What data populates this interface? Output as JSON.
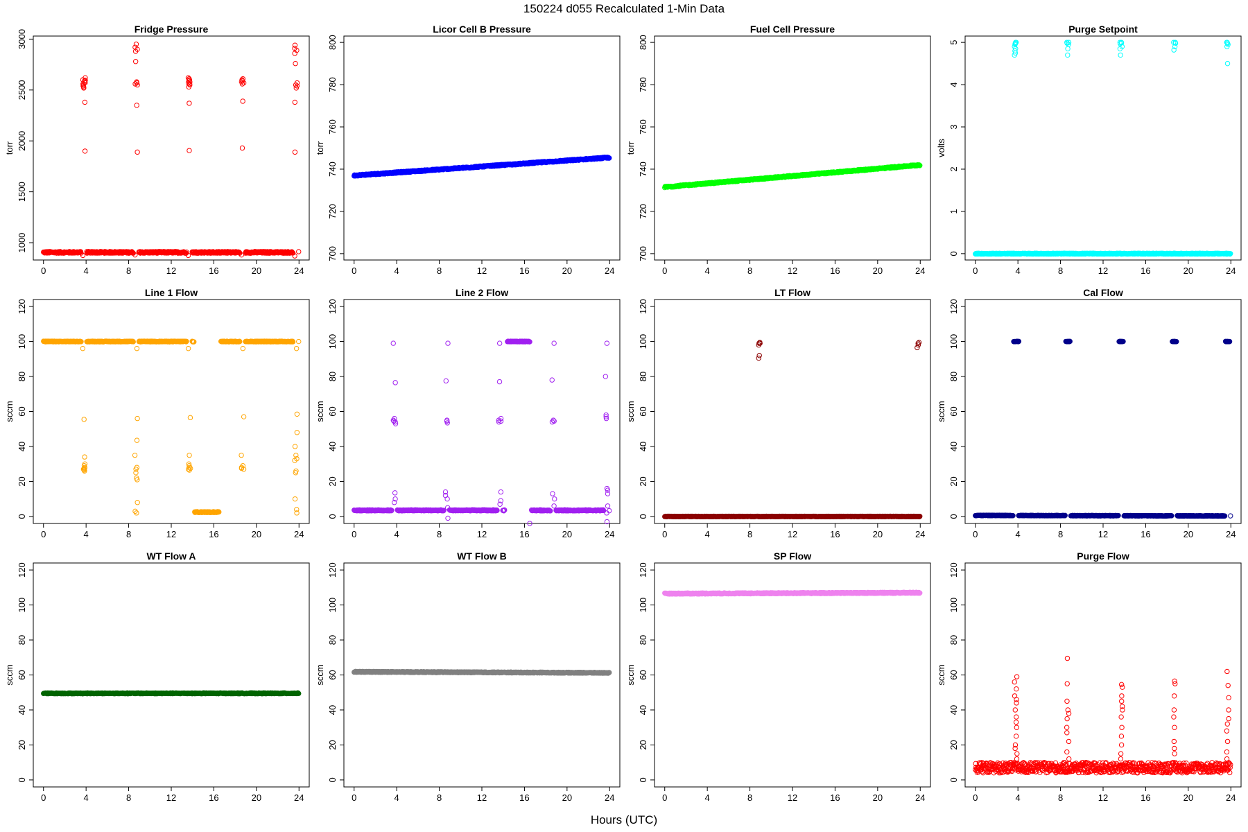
{
  "header": {
    "title": "150224   d055   Recalculated 1-Min Data",
    "xlabel": "Hours (UTC)"
  },
  "chart_data": [
    {
      "type": "scatter",
      "title": "Fridge Pressure",
      "ylabel": "torr",
      "color": "#ff0000",
      "xlim": [
        0,
        24
      ],
      "xticks": [
        0,
        4,
        8,
        12,
        16,
        20,
        24
      ],
      "ylim": [
        830,
        3030
      ],
      "yticks": [
        1000,
        1500,
        2000,
        2500,
        3000
      ],
      "baseline": {
        "y_start": 905,
        "y_end": 905,
        "noise": 8,
        "breaks": [
          3.8,
          8.7,
          13.7,
          18.7,
          23.7
        ]
      },
      "clusters": [
        {
          "x": 3.8,
          "y": [
            1900,
            2380,
            2520,
            2540,
            2560,
            2570,
            2580,
            2590,
            2600,
            2620,
            2530,
            2550,
            2595
          ]
        },
        {
          "x": 8.7,
          "y": [
            1890,
            2350,
            2550,
            2570,
            2580,
            2780,
            2880,
            2900,
            2920,
            2950,
            2560
          ]
        },
        {
          "x": 13.7,
          "y": [
            1905,
            2370,
            2530,
            2550,
            2570,
            2580,
            2590,
            2600,
            2610,
            2620,
            2560
          ]
        },
        {
          "x": 18.7,
          "y": [
            1930,
            2390,
            2560,
            2580,
            2590,
            2600,
            2610,
            2570
          ]
        },
        {
          "x": 23.7,
          "y": [
            1890,
            2380,
            2520,
            2550,
            2570,
            2760,
            2860,
            2890,
            2910,
            2940,
            2540
          ]
        }
      ],
      "dips": [
        {
          "x": 3.7,
          "y": 875
        },
        {
          "x": 8.6,
          "y": 880
        },
        {
          "x": 13.6,
          "y": 875
        },
        {
          "x": 18.6,
          "y": 880
        },
        {
          "x": 23.6,
          "y": 870
        }
      ]
    },
    {
      "type": "scatter",
      "title": "Licor Cell B Pressure",
      "ylabel": "torr",
      "color": "#0000ff",
      "xlim": [
        0,
        24
      ],
      "xticks": [
        0,
        4,
        8,
        12,
        16,
        20,
        24
      ],
      "ylim": [
        697,
        803
      ],
      "yticks": [
        700,
        720,
        740,
        760,
        780,
        800
      ],
      "baseline": {
        "y_start": 737,
        "y_end": 745.5,
        "noise": 0.3,
        "breaks": []
      },
      "clusters": [],
      "dips": []
    },
    {
      "type": "scatter",
      "title": "Fuel Cell Pressure",
      "ylabel": "torr",
      "color": "#00ff00",
      "xlim": [
        0,
        24
      ],
      "xticks": [
        0,
        4,
        8,
        12,
        16,
        20,
        24
      ],
      "ylim": [
        697,
        803
      ],
      "yticks": [
        700,
        720,
        740,
        760,
        780,
        800
      ],
      "baseline": {
        "y_start": 731.5,
        "y_end": 742,
        "noise": 0.3,
        "breaks": []
      },
      "clusters": [],
      "dips": []
    },
    {
      "type": "scatter",
      "title": "Purge Setpoint",
      "ylabel": "volts",
      "color": "#00ffff",
      "xlim": [
        0,
        24
      ],
      "xticks": [
        0,
        4,
        8,
        12,
        16,
        20,
        24
      ],
      "ylim": [
        -0.15,
        5.15
      ],
      "yticks": [
        0,
        1,
        2,
        3,
        4,
        5
      ],
      "baseline": {
        "y_start": 0,
        "y_end": 0,
        "noise": 0.01,
        "breaks": []
      },
      "clusters": [
        {
          "x": 3.8,
          "y": [
            5,
            4.98,
            4.95,
            4.9,
            4.85,
            4.8,
            4.75,
            4.7,
            5,
            4.97
          ]
        },
        {
          "x": 8.7,
          "y": [
            5,
            4.98,
            4.95,
            4.85,
            4.7,
            5
          ]
        },
        {
          "x": 13.7,
          "y": [
            5,
            4.99,
            4.97,
            4.9,
            4.85,
            4.7,
            5
          ]
        },
        {
          "x": 18.7,
          "y": [
            5,
            4.98,
            4.9,
            4.82,
            5
          ]
        },
        {
          "x": 23.7,
          "y": [
            5,
            4.98,
            4.95,
            4.9,
            4.5,
            5
          ]
        }
      ],
      "dips": []
    },
    {
      "type": "scatter",
      "title": "Line 1 Flow",
      "ylabel": "sccm",
      "color": "#ffa500",
      "xlim": [
        0,
        24
      ],
      "xticks": [
        0,
        4,
        8,
        12,
        16,
        20,
        24
      ],
      "ylim": [
        -4,
        124
      ],
      "yticks": [
        0,
        20,
        40,
        60,
        80,
        100,
        120
      ],
      "baseline": {
        "y_start": 100,
        "y_end": 100,
        "noise": 0.2,
        "breaks": [
          3.8,
          8.7,
          13.7,
          14.4,
          16.4,
          18.7,
          23.7
        ],
        "gaps": [
          [
            14.4,
            16.4
          ]
        ]
      },
      "segments": [
        {
          "x0": 14.2,
          "x1": 16.5,
          "y": 2.5,
          "noise": 0.3
        }
      ],
      "clusters": [
        {
          "x": 3.8,
          "y": [
            26,
            27,
            28,
            26.5,
            27.5,
            29,
            30,
            34,
            55.5,
            96,
            27
          ]
        },
        {
          "x": 8.7,
          "y": [
            22,
            21,
            25,
            28,
            35,
            43.5,
            56,
            8,
            3,
            2,
            96,
            27
          ]
        },
        {
          "x": 13.7,
          "y": [
            27,
            28,
            26.5,
            29,
            30,
            35,
            56.5,
            96,
            27.5
          ]
        },
        {
          "x": 18.7,
          "y": [
            27,
            28,
            29,
            35,
            57,
            96,
            27.5
          ]
        },
        {
          "x": 23.7,
          "y": [
            25,
            26,
            32,
            33,
            35,
            40,
            48,
            58.5,
            10,
            4,
            2,
            96
          ]
        }
      ],
      "dips": []
    },
    {
      "type": "scatter",
      "title": "Line 2 Flow",
      "ylabel": "sccm",
      "color": "#a020f0",
      "xlim": [
        0,
        24
      ],
      "xticks": [
        0,
        4,
        8,
        12,
        16,
        20,
        24
      ],
      "ylim": [
        -4,
        124
      ],
      "yticks": [
        0,
        20,
        40,
        60,
        80,
        100,
        120
      ],
      "baseline": {
        "y_start": 3.5,
        "y_end": 3.5,
        "noise": 0.3,
        "breaks": [
          3.8,
          8.7,
          13.7,
          14.4,
          16.4,
          18.7,
          23.7
        ],
        "gaps": [
          [
            14.4,
            16.4
          ]
        ]
      },
      "segments": [
        {
          "x0": 14.4,
          "x1": 16.5,
          "y": 100,
          "noise": 0.2
        }
      ],
      "clusters": [
        {
          "x": 3.8,
          "y": [
            53,
            54,
            55,
            56,
            54.5,
            76.5,
            99,
            10,
            13.5,
            8
          ]
        },
        {
          "x": 8.7,
          "y": [
            53.5,
            54.5,
            55,
            77.5,
            99,
            14,
            12,
            10,
            5,
            -1
          ]
        },
        {
          "x": 13.7,
          "y": [
            54,
            55,
            56,
            54.5,
            77,
            99,
            14,
            9,
            7
          ]
        },
        {
          "x": 18.7,
          "y": [
            54,
            55,
            54.5,
            78,
            99,
            13,
            10,
            6
          ]
        },
        {
          "x": 23.7,
          "y": [
            56,
            57,
            58,
            80,
            99,
            15,
            16,
            13,
            6,
            2,
            -3
          ]
        }
      ],
      "dips": [
        {
          "x": 16.5,
          "y": -4
        }
      ]
    },
    {
      "type": "scatter",
      "title": "LT Flow",
      "ylabel": "sccm",
      "color": "#8b0000",
      "xlim": [
        0,
        24
      ],
      "xticks": [
        0,
        4,
        8,
        12,
        16,
        20,
        24
      ],
      "ylim": [
        -4,
        124
      ],
      "yticks": [
        0,
        20,
        40,
        60,
        80,
        100,
        120
      ],
      "baseline": {
        "y_start": 0,
        "y_end": 0,
        "noise": 0.15,
        "breaks": []
      },
      "clusters": [
        {
          "x": 8.9,
          "y": [
            99,
            99.5,
            98,
            92,
            90.5,
            99
          ]
        },
        {
          "x": 23.8,
          "y": [
            99,
            98,
            96.5,
            99.5
          ]
        }
      ],
      "dips": []
    },
    {
      "type": "scatter",
      "title": "Cal Flow",
      "ylabel": "sccm",
      "color": "#00008b",
      "xlim": [
        0,
        24
      ],
      "xticks": [
        0,
        4,
        8,
        12,
        16,
        20,
        24
      ],
      "ylim": [
        -4,
        124
      ],
      "yticks": [
        0,
        20,
        40,
        60,
        80,
        100,
        120
      ],
      "baseline": {
        "y_start": 0.6,
        "y_end": 0.3,
        "noise": 0.15,
        "breaks": [
          3.8,
          8.7,
          13.7,
          18.7,
          23.7
        ]
      },
      "segments": [
        {
          "x0": 3.6,
          "x1": 4.1,
          "y": 100,
          "noise": 0.1
        },
        {
          "x0": 8.5,
          "x1": 8.9,
          "y": 100,
          "noise": 0.1
        },
        {
          "x0": 13.5,
          "x1": 13.9,
          "y": 100,
          "noise": 0.1
        },
        {
          "x0": 18.5,
          "x1": 18.9,
          "y": 100,
          "noise": 0.1
        },
        {
          "x0": 23.5,
          "x1": 23.9,
          "y": 100,
          "noise": 0.1
        }
      ],
      "clusters": [],
      "dips": []
    },
    {
      "type": "scatter",
      "title": "WT Flow A",
      "ylabel": "sccm",
      "color": "#006400",
      "xlim": [
        0,
        24
      ],
      "xticks": [
        0,
        4,
        8,
        12,
        16,
        20,
        24
      ],
      "ylim": [
        -4,
        124
      ],
      "yticks": [
        0,
        20,
        40,
        60,
        80,
        100,
        120
      ],
      "baseline": {
        "y_start": 49.5,
        "y_end": 49.5,
        "noise": 0.25,
        "breaks": []
      },
      "clusters": [],
      "dips": []
    },
    {
      "type": "scatter",
      "title": "WT Flow B",
      "ylabel": "sccm",
      "color": "#808080",
      "xlim": [
        0,
        24
      ],
      "xticks": [
        0,
        4,
        8,
        12,
        16,
        20,
        24
      ],
      "ylim": [
        -4,
        124
      ],
      "yticks": [
        0,
        20,
        40,
        60,
        80,
        100,
        120
      ],
      "baseline": {
        "y_start": 61.8,
        "y_end": 61.2,
        "noise": 0.25,
        "breaks": []
      },
      "clusters": [],
      "dips": []
    },
    {
      "type": "scatter",
      "title": "SP Flow",
      "ylabel": "sccm",
      "color": "#ee82ee",
      "xlim": [
        0,
        24
      ],
      "xticks": [
        0,
        4,
        8,
        12,
        16,
        20,
        24
      ],
      "ylim": [
        -4,
        124
      ],
      "yticks": [
        0,
        20,
        40,
        60,
        80,
        100,
        120
      ],
      "baseline": {
        "y_start": 106.5,
        "y_end": 107,
        "noise": 0.3,
        "breaks": []
      },
      "clusters": [],
      "dips": []
    },
    {
      "type": "scatter",
      "title": "Purge Flow",
      "ylabel": "sccm",
      "color": "#ff0000",
      "xlim": [
        0,
        24
      ],
      "xticks": [
        0,
        4,
        8,
        12,
        16,
        20,
        24
      ],
      "ylim": [
        -4,
        124
      ],
      "yticks": [
        0,
        20,
        40,
        60,
        80,
        100,
        120
      ],
      "baseline": {
        "y_start": 7,
        "y_end": 7,
        "noise": 3,
        "breaks": []
      },
      "clusters": [
        {
          "x": 3.8,
          "y": [
            59,
            56,
            52,
            48,
            46,
            44,
            40,
            36,
            33,
            30,
            25,
            20,
            18,
            15,
            12
          ]
        },
        {
          "x": 8.7,
          "y": [
            69.5,
            55,
            45,
            40,
            38,
            35,
            30,
            27,
            22,
            16,
            12
          ]
        },
        {
          "x": 13.7,
          "y": [
            54.5,
            53,
            48,
            45,
            42,
            40,
            36,
            30,
            25,
            20,
            15,
            12
          ]
        },
        {
          "x": 18.7,
          "y": [
            56.5,
            55,
            48,
            40,
            36,
            30,
            22,
            18,
            15,
            10
          ]
        },
        {
          "x": 23.7,
          "y": [
            62,
            54,
            47,
            40,
            35,
            32,
            28,
            22,
            16,
            12,
            9
          ]
        }
      ],
      "dips": []
    }
  ]
}
